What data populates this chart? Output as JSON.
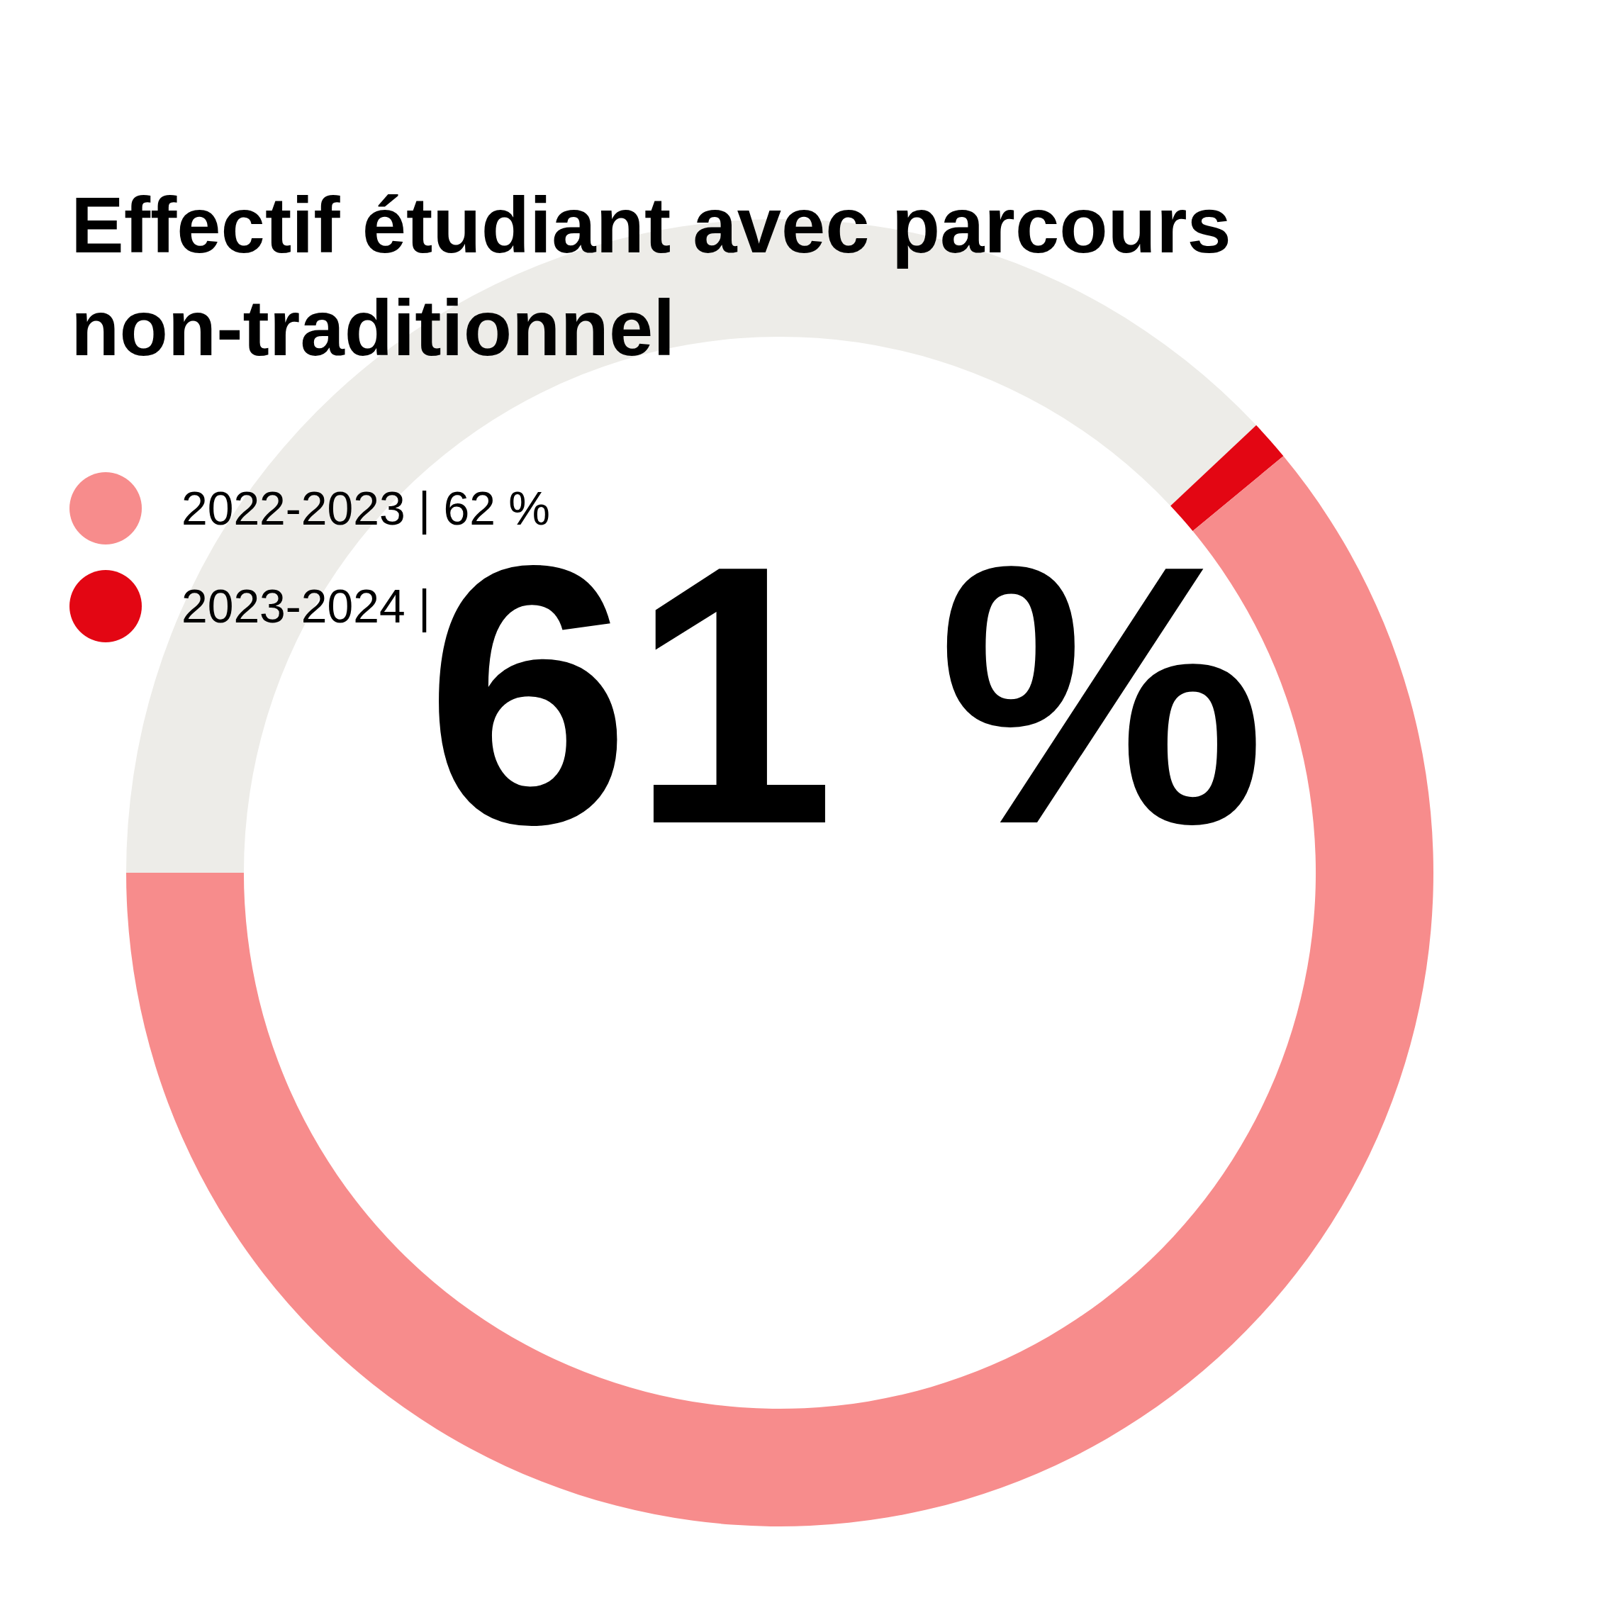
{
  "chart_data": {
    "type": "donut",
    "title": "Effectif étudiant avec parcours non-traditionnel",
    "categories": [
      null,
      null,
      null
    ],
    "values": [
      38,
      1,
      61
    ],
    "colors": [
      "#edece8",
      "#e30613",
      "#f78c8c"
    ],
    "annotations": [
      "2022-2023 | 62 %",
      "2023-2024 |",
      "61 %"
    ]
  }
}
